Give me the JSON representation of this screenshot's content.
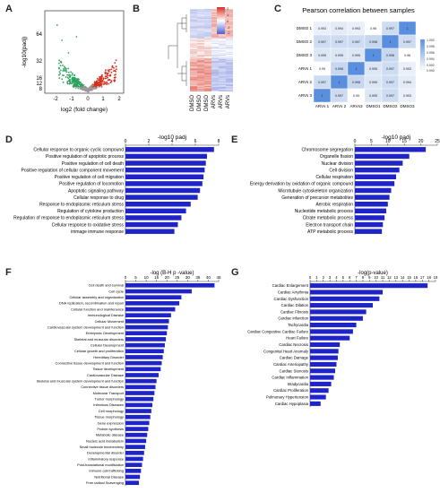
{
  "panel_labels": [
    "A",
    "B",
    "C",
    "D",
    "E",
    "F",
    "G"
  ],
  "volcano": {
    "xlabel": "log2 (fold change)",
    "ylabel": "-log10(padj)",
    "x_ticks": [
      "-2",
      "-1",
      "0",
      "1",
      "2"
    ],
    "y_ticks": [
      "64",
      "32",
      "16",
      "12",
      "8"
    ],
    "colors": {
      "down": "#2ca25f",
      "up": "#d7301f",
      "ns": "#9a9a9a"
    }
  },
  "heatmap": {
    "column_labels": [
      "DMSO",
      "DMSO",
      "DMSO",
      "ARVs",
      "ARVs",
      "ARVs"
    ],
    "legend_ticks": [
      "2",
      "1",
      "0",
      "-1",
      "-2"
    ],
    "colors": {
      "high": "#d7301f",
      "mid": "#ffffff",
      "low": "#4a5fd0"
    }
  },
  "correlation": {
    "title": "Pearson correlation between samples",
    "rows": [
      "DMSO 1",
      "DMSO 2",
      "DMSO 3",
      "ARVs 1",
      "ARVs 2",
      "ARVs 3"
    ],
    "cols": [
      "ARVs 1",
      "ARVs 2",
      "ARVs3",
      "DMSO1",
      "DMSO2",
      "DMSO3"
    ],
    "values": [
      [
        "0.993",
        "0.994",
        "0.993",
        "0.96",
        "0.997",
        "1"
      ],
      [
        "0.997",
        "0.997",
        "0.997",
        "0.998",
        "1",
        "0.997"
      ],
      [
        "0.995",
        "0.995",
        "0.995",
        "1",
        "0.998",
        "0.96"
      ],
      [
        "0.99",
        "0.998",
        "1",
        "0.995",
        "0.997",
        "0.993"
      ],
      [
        "0.997",
        "1",
        "0.998",
        "0.995",
        "0.997",
        "0.994"
      ],
      [
        "1",
        "0.997",
        "0.99",
        "0.995",
        "0.997",
        "0.993"
      ]
    ],
    "legend_ticks": [
      "1.000",
      "0.998",
      "0.996",
      "0.994",
      "0.992",
      "0.990"
    ]
  },
  "chart_data": [
    {
      "id": "D",
      "type": "bar",
      "orientation": "horizontal",
      "title": "-log10 padj",
      "ticks": [
        "0",
        "2",
        "4",
        "6",
        "8"
      ],
      "xlim": [
        0,
        8
      ],
      "color": "#1f24c8",
      "categories": [
        "Cellular response to organic cyclic compound",
        "Positive regulation of apoptotic process",
        "Positive regulation of cell death",
        "Positive regulation of cellular component movement",
        "Positive regulation of cell migration",
        "Positive regulation of locomotion",
        "Apoptotic signaling pathway",
        "Cellular response to drug",
        "Response to endoplasmic reticulum stress",
        "Regulation of cytokine production",
        "Regulation of response to endoplasmic reticulum stress",
        "Cellular response to oxidative stress",
        "immage immune response"
      ],
      "values": [
        7.6,
        7.0,
        6.9,
        6.8,
        6.7,
        6.6,
        6.4,
        6.2,
        5.6,
        5.2,
        4.8,
        4.5,
        4.2
      ]
    },
    {
      "id": "E",
      "type": "bar",
      "orientation": "horizontal",
      "title": "-log10 padj",
      "ticks": [
        "0",
        "5",
        "10",
        "15",
        "20",
        "25"
      ],
      "xlim": [
        0,
        25
      ],
      "color": "#1f24c8",
      "categories": [
        "Chromosome segregation",
        "Organelle fission",
        "Nuclear division",
        "Cell division",
        "Cellular respiration",
        "Energy derivation by oxidation of organic compound",
        "Microtubule cytoskeleton organization",
        "Generation of precursor metabolites",
        "Aerobic respiration",
        "Nucleotide metabolic process",
        "Citrate metabolic process",
        "Electron transport chain",
        "ATP metabolic process"
      ],
      "values": [
        21.5,
        16.5,
        14.5,
        13.5,
        12.5,
        12.0,
        11.0,
        10.5,
        10.0,
        9.5,
        9.0,
        8.5,
        8.2
      ]
    },
    {
      "id": "F",
      "type": "bar",
      "orientation": "horizontal",
      "title": "-log (B-H p -value)",
      "ticks": [
        "0",
        "5",
        "10",
        "15",
        "20",
        "25",
        "30",
        "35",
        "40",
        "45"
      ],
      "xlim": [
        0,
        45
      ],
      "color": "#1f24c8",
      "categories": [
        "Cell death and survival",
        "Cell cycle",
        "Cellular assembly and organization",
        "DNA replication, recombination and repair",
        "Cellular function and maintenance",
        "Immunological Disease",
        "Cellular Movement",
        "Cardiovascular system development and function",
        "Embryonic Development",
        "Skeletal and muscular disorders",
        "Cellular Development",
        "Cellular growth and proliferation",
        "Hereditary Disorder",
        "Connective tissue development and function",
        "Tissue development",
        "Cardiovascular Disease",
        "Skeletal and muscular system development and function",
        "Connective tissue disorders",
        "Molecular Transport",
        "Tumor morphology",
        "Infectious Diseases",
        "Cell morphology",
        "Tissue morphology",
        "Gene expression",
        "Protein synthesis",
        "Metabolic disease",
        "Nucleic acid metabolism",
        "Small molecule biochemistry",
        "Developmental disorder",
        "Inflammatory response",
        "Post-translational modification",
        "Immune cell trafficking",
        "Nutritional Disease",
        "Free radical Scavenging"
      ],
      "values": [
        43,
        32,
        27,
        26,
        24,
        22,
        21,
        20.5,
        20,
        19.5,
        19,
        18.5,
        18,
        17.5,
        17,
        16,
        15,
        14.5,
        14,
        13.5,
        13,
        12.5,
        12,
        11.5,
        11,
        10.5,
        10,
        9.5,
        9,
        8.5,
        8,
        7.5,
        7,
        6.5
      ]
    },
    {
      "id": "G",
      "type": "bar",
      "orientation": "horizontal",
      "title": "-log(p-value)",
      "ticks": [
        "0",
        "1",
        "2",
        "3",
        "4",
        "5",
        "6",
        "7",
        "8",
        "9",
        "10",
        "11",
        "12",
        "13",
        "14",
        "15",
        "16",
        "17",
        "18",
        "19"
      ],
      "xlim": [
        0,
        19
      ],
      "color": "#1f24c8",
      "categories": [
        "Cardiac Enlargement",
        "Cardiac Arrythmia",
        "Cardiac Dysfunction",
        "Cardiac Dilation",
        "Cardiac Fibrosis",
        "Cardiac Infarction",
        "Tachycardia",
        "Cardiac Congestive Cardiac Failure",
        "Heart Failure",
        "Cardiac Necrosis",
        "Congenital Heart Anomaly",
        "Cardiac Damage",
        "Cardiac Arteriopathy",
        "Cardiac Stenosis",
        "Cardiac Inflammation",
        "Bradycardia",
        "Cardiac Proliferation",
        "Pulmonary Hypertension",
        "Cardiac Hypoplasia"
      ],
      "values": [
        17.8,
        11.0,
        10.5,
        9.5,
        8.5,
        8.0,
        7.0,
        6.5,
        6.0,
        4.5,
        4.3,
        4.2,
        4.0,
        3.8,
        3.6,
        3.2,
        2.8,
        2.4,
        1.6
      ]
    }
  ]
}
